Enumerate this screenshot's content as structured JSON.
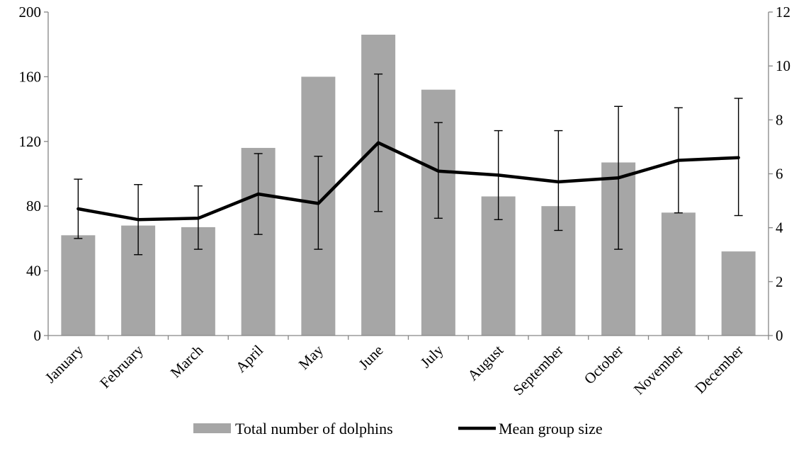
{
  "chart_data": {
    "type": "bar+line",
    "categories": [
      "January",
      "February",
      "March",
      "April",
      "May",
      "June",
      "July",
      "August",
      "September",
      "October",
      "November",
      "December"
    ],
    "series": [
      {
        "name": "Total number of dolphins",
        "type": "bar",
        "axis": "left",
        "color": "#a6a6a6",
        "values": [
          62,
          68,
          67,
          116,
          160,
          186,
          152,
          86,
          80,
          107,
          76,
          52
        ]
      },
      {
        "name": "Mean group size",
        "type": "line",
        "axis": "right",
        "color": "#000000",
        "values": [
          4.7,
          4.3,
          4.35,
          5.25,
          4.9,
          7.15,
          6.1,
          5.95,
          5.7,
          5.85,
          6.5,
          6.6
        ],
        "error_high": [
          5.8,
          5.6,
          5.55,
          6.75,
          6.65,
          9.7,
          7.9,
          7.6,
          7.6,
          8.5,
          8.45,
          8.8
        ],
        "error_low": [
          3.6,
          3.0,
          3.2,
          3.75,
          3.2,
          4.6,
          4.35,
          4.3,
          3.9,
          3.2,
          4.55,
          4.45
        ]
      }
    ],
    "y_left": {
      "min": 0,
      "max": 200,
      "ticks": [
        0,
        40,
        80,
        120,
        160,
        200
      ]
    },
    "y_right": {
      "min": 0,
      "max": 12,
      "ticks": [
        0,
        2,
        4,
        6,
        8,
        10,
        12
      ]
    },
    "legend": {
      "position": "bottom"
    },
    "grid": false
  }
}
